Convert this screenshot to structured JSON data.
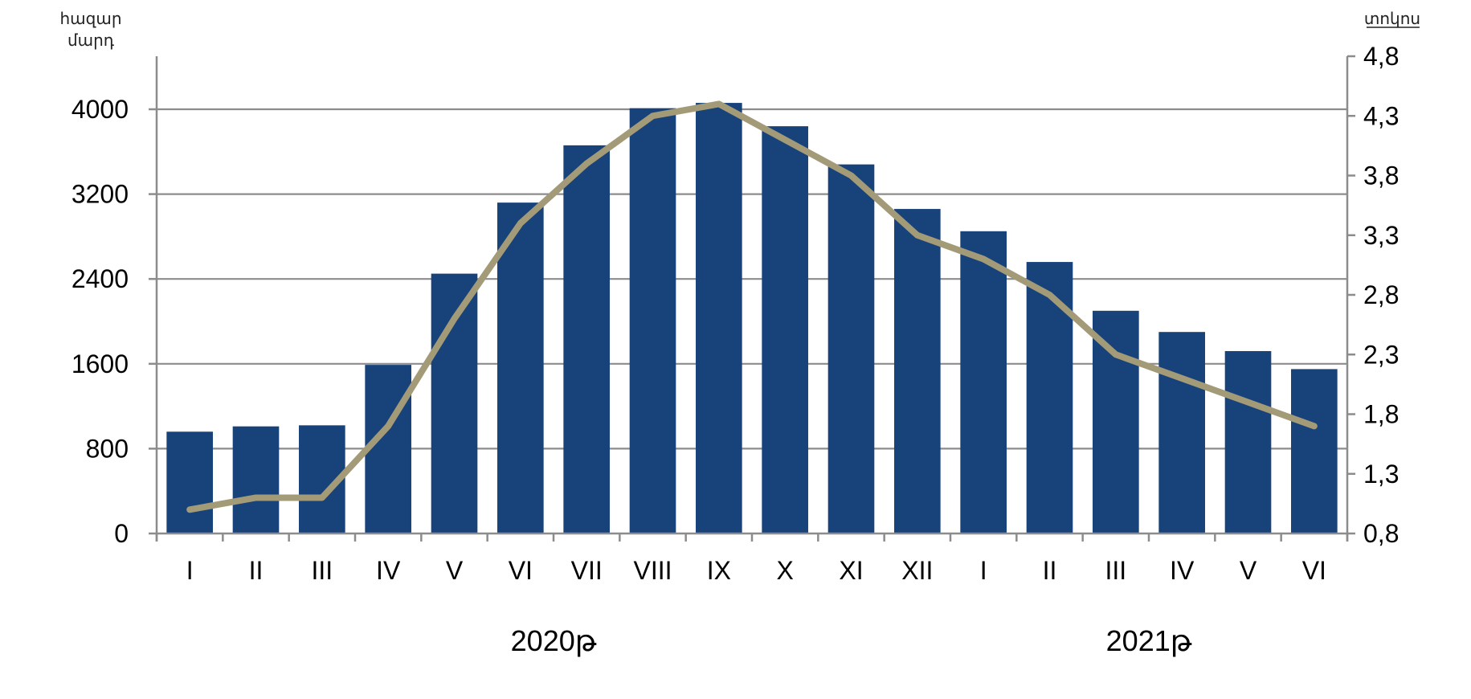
{
  "chart_data": {
    "type": "bar",
    "title": "",
    "left_axis_unit": [
      "հազար",
      "մարդ"
    ],
    "right_axis_unit": "տոկոս",
    "categories": [
      "I",
      "II",
      "III",
      "IV",
      "V",
      "VI",
      "VII",
      "VIII",
      "IX",
      "X",
      "XI",
      "XII",
      "I",
      "II",
      "III",
      "IV",
      "V",
      "VI"
    ],
    "year_labels": [
      {
        "label": "2020թ",
        "first_index": 0,
        "last_index": 11
      },
      {
        "label": "2021թ",
        "first_index": 12,
        "last_index": 17
      }
    ],
    "ylim_left": [
      0,
      4500
    ],
    "left_ticks": [
      "0",
      "800",
      "1600",
      "2400",
      "3200",
      "4000"
    ],
    "ylim_right": [
      0.8,
      4.8
    ],
    "right_ticks": [
      "0,8",
      "1,3",
      "1,8",
      "2,3",
      "2,8",
      "3,3",
      "3,8",
      "4,3",
      "4,8"
    ],
    "grid": true,
    "series": [
      {
        "axis": "left",
        "render": "bar",
        "color": "#17427a",
        "values": [
          960,
          1010,
          1020,
          1590,
          2450,
          3120,
          3660,
          4010,
          4060,
          3840,
          3480,
          3060,
          2850,
          2560,
          2100,
          1900,
          1720,
          1550
        ]
      },
      {
        "axis": "right",
        "render": "line",
        "color": "#a39a78",
        "values": [
          1.0,
          1.1,
          1.1,
          1.7,
          2.6,
          3.4,
          3.9,
          4.3,
          4.4,
          4.1,
          3.8,
          3.3,
          3.1,
          2.8,
          2.3,
          2.1,
          1.9,
          1.7
        ]
      }
    ]
  }
}
